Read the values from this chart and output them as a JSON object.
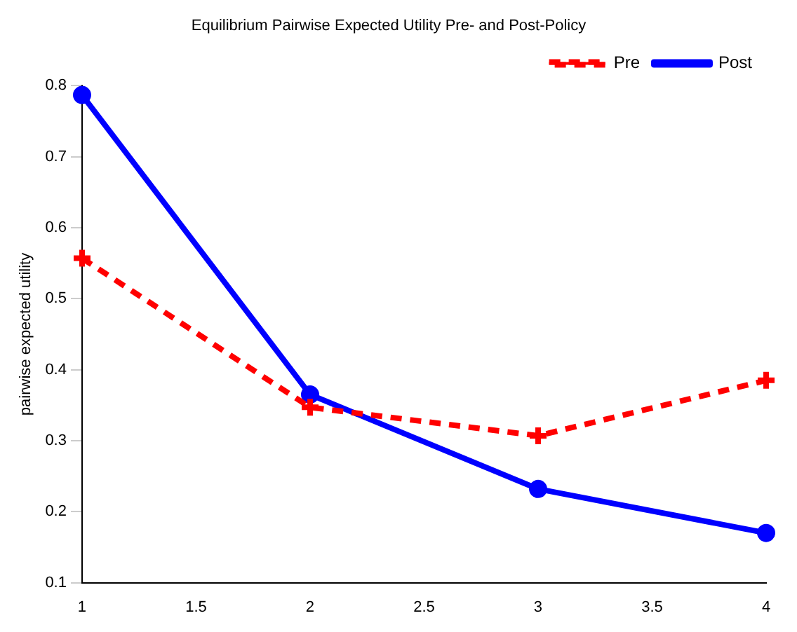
{
  "chart_data": {
    "type": "line",
    "title": "Equilibrium Pairwise Expected Utility Pre- and Post-Policy",
    "ylabel": "pairwise expected utility",
    "x": [
      1,
      2,
      3,
      4
    ],
    "series": [
      {
        "name": "Pre",
        "color": "#ff0000",
        "values": [
          0.557,
          0.347,
          0.307,
          0.385
        ],
        "marker": "cross",
        "line_style": "dashed"
      },
      {
        "name": "Post",
        "color": "#0000ff",
        "values": [
          0.787,
          0.365,
          0.232,
          0.17
        ],
        "marker": "circle",
        "line_style": "solid"
      }
    ],
    "xlim": [
      1,
      4
    ],
    "xticks": [
      1,
      1.5,
      2,
      2.5,
      3,
      3.5,
      4
    ],
    "ylim": [
      0.1,
      0.8
    ],
    "yticks": [
      0.1,
      0.2,
      0.3,
      0.4,
      0.5,
      0.6,
      0.7,
      0.8
    ],
    "grid": false,
    "legend": "top right"
  }
}
